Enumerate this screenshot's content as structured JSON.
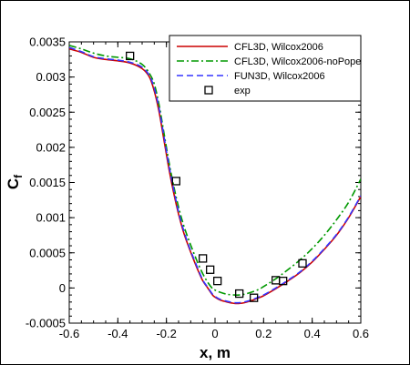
{
  "chart_data": {
    "type": "line",
    "xlabel": "x, m",
    "ylabel_main": "C",
    "ylabel_sub": "f",
    "xlim": [
      -0.6,
      0.6
    ],
    "ylim": [
      -0.0005,
      0.0035
    ],
    "xticks": [
      -0.6,
      -0.4,
      -0.2,
      0,
      0.2,
      0.4,
      0.6
    ],
    "xtick_labels": [
      "-0.6",
      "-0.4",
      "-0.2",
      "0",
      "0.2",
      "0.4",
      "0.6"
    ],
    "yticks": [
      -0.0005,
      0,
      0.0005,
      0.001,
      0.0015,
      0.002,
      0.0025,
      0.003,
      0.0035
    ],
    "ytick_labels": [
      "-0.0005",
      "0",
      "0.0005",
      "0.001",
      "0.0015",
      "0.002",
      "0.0025",
      "0.003",
      "0.0035"
    ],
    "grid": false,
    "legend_position": "top-right",
    "series": [
      {
        "name": "CFL3D, Wilcox2006",
        "color": "#cc0000",
        "dash": "",
        "x": [
          -0.6,
          -0.55,
          -0.5,
          -0.45,
          -0.4,
          -0.35,
          -0.3,
          -0.27,
          -0.25,
          -0.23,
          -0.21,
          -0.19,
          -0.17,
          -0.15,
          -0.13,
          -0.11,
          -0.09,
          -0.07,
          -0.05,
          -0.03,
          -0.01,
          0.0,
          0.02,
          0.05,
          0.08,
          0.1,
          0.12,
          0.15,
          0.18,
          0.2,
          0.25,
          0.3,
          0.35,
          0.4,
          0.45,
          0.5,
          0.55,
          0.6
        ],
        "y": [
          0.0034,
          0.00335,
          0.00328,
          0.00325,
          0.00323,
          0.0032,
          0.00312,
          0.003,
          0.0028,
          0.0025,
          0.0021,
          0.0017,
          0.00135,
          0.00105,
          0.0008,
          0.0006,
          0.00042,
          0.00025,
          0.0001,
          0.0,
          -0.0001,
          -0.00013,
          -0.00017,
          -0.0002,
          -0.00022,
          -0.00022,
          -0.00021,
          -0.00018,
          -0.00014,
          -0.00011,
          -1e-05,
          0.0001,
          0.00022,
          0.00037,
          0.00055,
          0.00075,
          0.001,
          0.0013
        ]
      },
      {
        "name": "CFL3D, Wilcox2006-noPope",
        "color": "#009900",
        "dash": "8,3,2,3",
        "x": [
          -0.6,
          -0.55,
          -0.5,
          -0.45,
          -0.4,
          -0.35,
          -0.3,
          -0.27,
          -0.25,
          -0.23,
          -0.21,
          -0.19,
          -0.17,
          -0.15,
          -0.13,
          -0.11,
          -0.09,
          -0.07,
          -0.05,
          -0.03,
          -0.01,
          0.0,
          0.02,
          0.05,
          0.08,
          0.1,
          0.12,
          0.15,
          0.18,
          0.2,
          0.25,
          0.3,
          0.35,
          0.4,
          0.45,
          0.5,
          0.55,
          0.6
        ],
        "y": [
          0.00345,
          0.0034,
          0.00334,
          0.0033,
          0.00328,
          0.00326,
          0.00318,
          0.00305,
          0.0029,
          0.0026,
          0.0022,
          0.0018,
          0.00145,
          0.00115,
          0.0009,
          0.0007,
          0.00052,
          0.00035,
          0.0002,
          8e-05,
          -1e-05,
          -3e-05,
          -6e-05,
          -9e-05,
          -0.0001,
          -0.0001,
          -9e-05,
          -6e-05,
          -2e-05,
          2e-05,
          0.00013,
          0.00026,
          0.0004,
          0.00056,
          0.00075,
          0.00097,
          0.00122,
          0.00155
        ]
      },
      {
        "name": "FUN3D, Wilcox2006",
        "color": "#3333ff",
        "dash": "7,4",
        "x": [
          -0.6,
          -0.55,
          -0.5,
          -0.45,
          -0.4,
          -0.35,
          -0.3,
          -0.27,
          -0.25,
          -0.23,
          -0.21,
          -0.19,
          -0.17,
          -0.15,
          -0.13,
          -0.11,
          -0.09,
          -0.07,
          -0.05,
          -0.03,
          -0.01,
          0.0,
          0.02,
          0.05,
          0.08,
          0.1,
          0.12,
          0.15,
          0.18,
          0.2,
          0.25,
          0.3,
          0.35,
          0.4,
          0.45,
          0.5,
          0.55,
          0.6
        ],
        "y": [
          0.00342,
          0.00336,
          0.00329,
          0.00326,
          0.00324,
          0.00321,
          0.00314,
          0.00302,
          0.00284,
          0.00255,
          0.00215,
          0.00175,
          0.0014,
          0.00108,
          0.00083,
          0.00062,
          0.00044,
          0.00027,
          0.00011,
          1e-05,
          -9e-05,
          -0.00012,
          -0.00016,
          -0.00019,
          -0.00021,
          -0.00021,
          -0.0002,
          -0.00017,
          -0.00013,
          -0.0001,
          0.0,
          0.00011,
          0.00023,
          0.00038,
          0.00056,
          0.00076,
          0.00101,
          0.00131
        ]
      },
      {
        "name": "exp",
        "color": "#000000",
        "marker": "square",
        "x": [
          -0.35,
          -0.16,
          -0.05,
          -0.02,
          0.01,
          0.1,
          0.16,
          0.25,
          0.28,
          0.36
        ],
        "y": [
          0.0033,
          0.00152,
          0.00042,
          0.00026,
          0.0001,
          -8e-05,
          -0.00014,
          0.00011,
          0.0001,
          0.00035
        ]
      }
    ]
  }
}
